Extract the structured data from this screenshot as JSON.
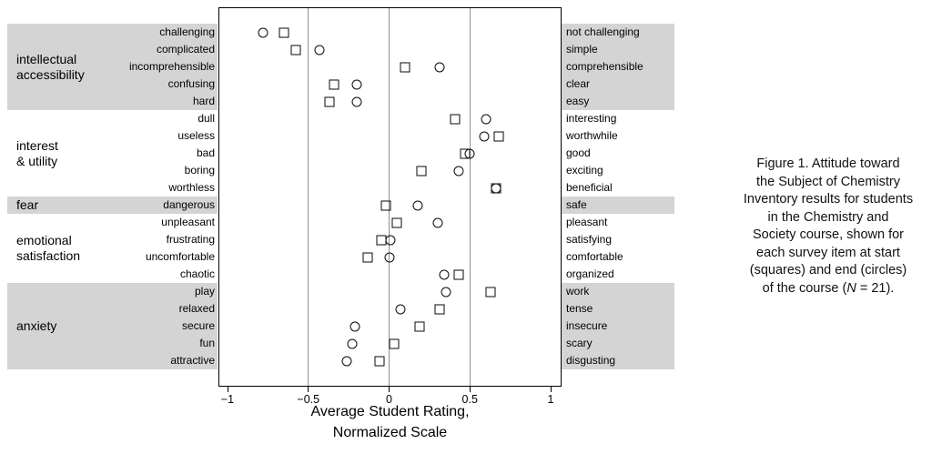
{
  "style": {
    "shaded_band_color": "#d4d4d4"
  },
  "chart_data": {
    "type": "scatter",
    "title": "",
    "xlabel_lines": [
      "Average Student Rating,",
      "Normalized Scale"
    ],
    "xlim": [
      -1,
      1
    ],
    "gridlines": [
      -0.5,
      0,
      0.5
    ],
    "xticks": [
      {
        "value": -1,
        "label": "−1"
      },
      {
        "value": -0.5,
        "label": "−0.5"
      },
      {
        "value": 0,
        "label": "0"
      },
      {
        "value": 0.5,
        "label": "0.5"
      },
      {
        "value": 1,
        "label": "1"
      }
    ],
    "marker_legend": {
      "square": "start of course",
      "circle": "end of course"
    },
    "groups": [
      {
        "name": "intellectual accessibility",
        "label_lines": [
          "intellectual",
          "accessibility"
        ],
        "shaded": true,
        "items": [
          {
            "left": "challenging",
            "right": "not challenging",
            "start": -0.65,
            "end": -0.78
          },
          {
            "left": "complicated",
            "right": "simple",
            "start": -0.58,
            "end": -0.43
          },
          {
            "left": "incomprehensible",
            "right": "comprehensible",
            "start": 0.1,
            "end": 0.31
          },
          {
            "left": "confusing",
            "right": "clear",
            "start": -0.34,
            "end": -0.2
          },
          {
            "left": "hard",
            "right": "easy",
            "start": -0.37,
            "end": -0.2
          }
        ]
      },
      {
        "name": "interest & utility",
        "label_lines": [
          "interest",
          "& utility"
        ],
        "shaded": false,
        "items": [
          {
            "left": "dull",
            "right": "interesting",
            "start": 0.41,
            "end": 0.6
          },
          {
            "left": "useless",
            "right": "worthwhile",
            "start": 0.68,
            "end": 0.59
          },
          {
            "left": "bad",
            "right": "good",
            "start": 0.47,
            "end": 0.5
          },
          {
            "left": "boring",
            "right": "exciting",
            "start": 0.2,
            "end": 0.43
          },
          {
            "left": "worthless",
            "right": "beneficial",
            "start": 0.66,
            "end": 0.66
          }
        ]
      },
      {
        "name": "fear",
        "label_lines": [
          "fear"
        ],
        "shaded": true,
        "items": [
          {
            "left": "dangerous",
            "right": "safe",
            "start": -0.02,
            "end": 0.18
          }
        ]
      },
      {
        "name": "emotional satisfaction",
        "label_lines": [
          "emotional",
          "satisfaction"
        ],
        "shaded": false,
        "items": [
          {
            "left": "unpleasant",
            "right": "pleasant",
            "start": 0.05,
            "end": 0.3
          },
          {
            "left": "frustrating",
            "right": "satisfying",
            "start": -0.05,
            "end": 0.01
          },
          {
            "left": "uncomfortable",
            "right": "comfortable",
            "start": -0.13,
            "end": 0.0
          },
          {
            "left": "chaotic",
            "right": "organized",
            "start": 0.43,
            "end": 0.34
          }
        ]
      },
      {
        "name": "anxiety",
        "label_lines": [
          "anxiety"
        ],
        "shaded": true,
        "items": [
          {
            "left": "play",
            "right": "work",
            "start": 0.63,
            "end": 0.35
          },
          {
            "left": "relaxed",
            "right": "tense",
            "start": 0.31,
            "end": 0.07
          },
          {
            "left": "secure",
            "right": "insecure",
            "start": 0.19,
            "end": -0.21
          },
          {
            "left": "fun",
            "right": "scary",
            "start": 0.03,
            "end": -0.23
          },
          {
            "left": "attractive",
            "right": "disgusting",
            "start": -0.06,
            "end": -0.26
          }
        ]
      }
    ]
  },
  "caption": {
    "lines": [
      "Figure 1. Attitude toward",
      "the Subject of Chemistry",
      "Inventory results for students",
      "in the Chemistry and",
      "Society course, shown for",
      "each survey item at start",
      "(squares) and end (circles)",
      "of the course (N = 21)."
    ]
  }
}
